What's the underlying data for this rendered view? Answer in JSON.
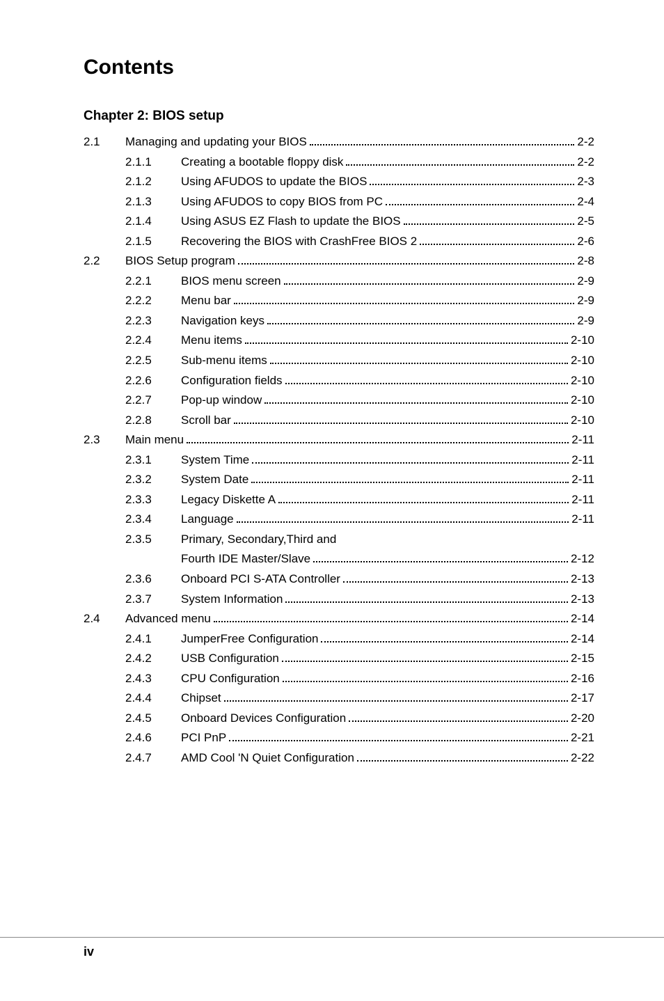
{
  "title": "Contents",
  "chapter_heading": "Chapter 2: BIOS setup",
  "page_number": "iv",
  "entries": [
    {
      "section": "2.1",
      "sub": "",
      "label": "Managing and updating your BIOS",
      "page": "2-2",
      "indent": "section"
    },
    {
      "section": "",
      "sub": "2.1.1",
      "label": "Creating a bootable floppy disk",
      "page": "2-2",
      "indent": "sub"
    },
    {
      "section": "",
      "sub": "2.1.2",
      "label": "Using AFUDOS to update the BIOS",
      "page": "2-3",
      "indent": "sub"
    },
    {
      "section": "",
      "sub": "2.1.3",
      "label": "Using AFUDOS to copy BIOS from PC",
      "page": "2-4",
      "indent": "sub"
    },
    {
      "section": "",
      "sub": "2.1.4",
      "label": "Using ASUS EZ Flash to update the BIOS",
      "page": "2-5",
      "indent": "sub"
    },
    {
      "section": "",
      "sub": "2.1.5",
      "label": "Recovering the BIOS with CrashFree BIOS 2",
      "page": "2-6",
      "indent": "sub"
    },
    {
      "section": "2.2",
      "sub": "",
      "label": "BIOS Setup program",
      "page": "2-8",
      "indent": "section"
    },
    {
      "section": "",
      "sub": "2.2.1",
      "label": "BIOS menu screen",
      "page": "2-9",
      "indent": "sub"
    },
    {
      "section": "",
      "sub": "2.2.2",
      "label": "Menu bar",
      "page": "2-9",
      "indent": "sub"
    },
    {
      "section": "",
      "sub": "2.2.3",
      "label": "Navigation keys",
      "page": "2-9",
      "indent": "sub"
    },
    {
      "section": "",
      "sub": "2.2.4",
      "label": "Menu items",
      "page": "2-10",
      "indent": "sub"
    },
    {
      "section": "",
      "sub": "2.2.5",
      "label": "Sub-menu items",
      "page": "2-10",
      "indent": "sub"
    },
    {
      "section": "",
      "sub": "2.2.6",
      "label": "Configuration fields",
      "page": "2-10",
      "indent": "sub"
    },
    {
      "section": "",
      "sub": "2.2.7",
      "label": "Pop-up window",
      "page": "2-10",
      "indent": "sub"
    },
    {
      "section": "",
      "sub": "2.2.8",
      "label": "Scroll bar",
      "page": "2-10",
      "indent": "sub"
    },
    {
      "section": "2.3",
      "sub": "",
      "label": "Main menu",
      "page": "2-11",
      "indent": "section"
    },
    {
      "section": "",
      "sub": "2.3.1",
      "label": "System Time",
      "page": "2-11",
      "indent": "sub"
    },
    {
      "section": "",
      "sub": "2.3.2",
      "label": "System Date",
      "page": "2-11",
      "indent": "sub"
    },
    {
      "section": "",
      "sub": "2.3.3",
      "label": "Legacy Diskette A ",
      "page": "2-11",
      "indent": "sub"
    },
    {
      "section": "",
      "sub": "2.3.4",
      "label": "Language",
      "page": "2-11",
      "indent": "sub"
    },
    {
      "section": "",
      "sub": "2.3.5",
      "label": "Primary, Secondary,Third and",
      "page": "",
      "indent": "sub",
      "no_dots": true
    },
    {
      "section": "",
      "sub": "",
      "label": "Fourth IDE Master/Slave",
      "page": "2-12",
      "indent": "continuation"
    },
    {
      "section": "",
      "sub": "2.3.6",
      "label": "Onboard PCI S-ATA Controller",
      "page": "2-13",
      "indent": "sub"
    },
    {
      "section": "",
      "sub": "2.3.7",
      "label": "System Information",
      "page": "2-13",
      "indent": "sub"
    },
    {
      "section": "2.4",
      "sub": "",
      "label": "Advanced menu",
      "page": "2-14",
      "indent": "section"
    },
    {
      "section": "",
      "sub": "2.4.1",
      "label": "JumperFree Configuration",
      "page": "2-14",
      "indent": "sub"
    },
    {
      "section": "",
      "sub": "2.4.2",
      "label": "USB Configuration",
      "page": "2-15",
      "indent": "sub"
    },
    {
      "section": "",
      "sub": "2.4.3",
      "label": "CPU Configuration",
      "page": "2-16",
      "indent": "sub"
    },
    {
      "section": "",
      "sub": "2.4.4",
      "label": "Chipset",
      "page": "2-17",
      "indent": "sub"
    },
    {
      "section": "",
      "sub": "2.4.5",
      "label": "Onboard Devices Configuration",
      "page": "2-20",
      "indent": "sub"
    },
    {
      "section": "",
      "sub": "2.4.6",
      "label": "PCI PnP",
      "page": "2-21",
      "indent": "sub"
    },
    {
      "section": "",
      "sub": "2.4.7",
      "label": "AMD Cool 'N Quiet Configuration",
      "page": "2-22",
      "indent": "sub"
    }
  ]
}
